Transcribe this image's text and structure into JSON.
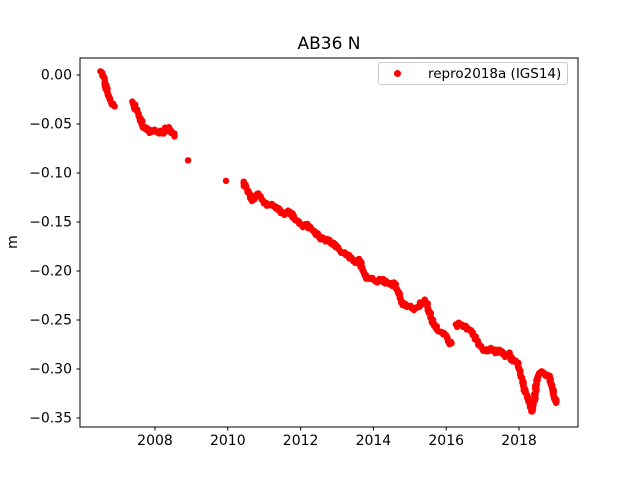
{
  "figure": {
    "background": "#ffffff",
    "text_color": "#000000",
    "spine_color": "#000000"
  },
  "chart_data": {
    "type": "scatter",
    "title": "AB36 N",
    "xlabel": "",
    "ylabel": "m",
    "xlim": [
      2005.94,
      2019.62
    ],
    "ylim": [
      -0.3592,
      0.01735
    ],
    "grid": false,
    "x_ticks": [
      2008,
      2010,
      2012,
      2014,
      2016,
      2018
    ],
    "x_tick_labels": [
      "2008",
      "2010",
      "2012",
      "2014",
      "2016",
      "2018"
    ],
    "y_ticks": [
      0.0,
      -0.05,
      -0.1,
      -0.15,
      -0.2,
      -0.25,
      -0.3,
      -0.35
    ],
    "y_tick_labels": [
      "0.00",
      "−0.05",
      "−0.10",
      "−0.15",
      "−0.20",
      "−0.25",
      "−0.30",
      "−0.35"
    ],
    "legend": {
      "position": "upper-right",
      "entries": [
        {
          "label": "repro2018a (IGS14)",
          "marker": "dot",
          "color": "#ff0000"
        }
      ]
    },
    "series": [
      {
        "name": "repro2018a (IGS14)",
        "color": "#ff0000",
        "marker_size_px": 6.4,
        "units": "m",
        "segments": [
          [
            [
              2006.5,
              0.003
            ],
            [
              2006.54,
              0.001
            ],
            [
              2006.58,
              -0.003
            ],
            [
              2006.62,
              -0.008
            ],
            [
              2006.66,
              -0.013
            ],
            [
              2006.7,
              -0.018
            ],
            [
              2006.74,
              -0.022
            ],
            [
              2006.79,
              -0.026
            ],
            [
              2006.84,
              -0.029
            ],
            [
              2006.88,
              -0.031
            ]
          ],
          [
            [
              2007.4,
              -0.028
            ],
            [
              2007.45,
              -0.033
            ],
            [
              2007.53,
              -0.038
            ],
            [
              2007.59,
              -0.043
            ],
            [
              2007.64,
              -0.048
            ],
            [
              2007.67,
              -0.053
            ],
            [
              2007.78,
              -0.056
            ],
            [
              2007.92,
              -0.058
            ],
            [
              2008.0,
              -0.056
            ],
            [
              2008.08,
              -0.058
            ],
            [
              2008.19,
              -0.059
            ],
            [
              2008.27,
              -0.056
            ],
            [
              2008.36,
              -0.054
            ],
            [
              2008.41,
              -0.056
            ],
            [
              2008.49,
              -0.059
            ],
            [
              2008.55,
              -0.062
            ]
          ],
          [
            [
              2010.42,
              -0.11
            ],
            [
              2010.5,
              -0.115
            ],
            [
              2010.58,
              -0.12
            ],
            [
              2010.68,
              -0.127
            ],
            [
              2010.78,
              -0.124
            ],
            [
              2010.86,
              -0.122
            ],
            [
              2010.95,
              -0.128
            ],
            [
              2011.03,
              -0.131
            ],
            [
              2011.12,
              -0.132
            ],
            [
              2011.22,
              -0.131
            ],
            [
              2011.3,
              -0.134
            ],
            [
              2011.38,
              -0.137
            ],
            [
              2011.48,
              -0.14
            ],
            [
              2011.56,
              -0.141
            ],
            [
              2011.64,
              -0.139
            ],
            [
              2011.75,
              -0.142
            ],
            [
              2011.84,
              -0.146
            ],
            [
              2011.92,
              -0.149
            ],
            [
              2012.03,
              -0.152
            ],
            [
              2012.11,
              -0.154
            ],
            [
              2012.19,
              -0.153
            ],
            [
              2012.3,
              -0.157
            ],
            [
              2012.4,
              -0.161
            ],
            [
              2012.5,
              -0.165
            ],
            [
              2012.58,
              -0.167
            ],
            [
              2012.68,
              -0.168
            ],
            [
              2012.78,
              -0.169
            ],
            [
              2012.88,
              -0.172
            ],
            [
              2012.96,
              -0.174
            ],
            [
              2013.05,
              -0.177
            ],
            [
              2013.13,
              -0.18
            ],
            [
              2013.22,
              -0.182
            ],
            [
              2013.32,
              -0.184
            ],
            [
              2013.42,
              -0.189
            ],
            [
              2013.5,
              -0.192
            ],
            [
              2013.56,
              -0.188
            ],
            [
              2013.62,
              -0.19
            ],
            [
              2013.7,
              -0.198
            ],
            [
              2013.76,
              -0.203
            ],
            [
              2013.82,
              -0.206
            ],
            [
              2013.9,
              -0.206
            ],
            [
              2013.98,
              -0.209
            ],
            [
              2014.08,
              -0.211
            ],
            [
              2014.16,
              -0.21
            ],
            [
              2014.24,
              -0.209
            ],
            [
              2014.32,
              -0.213
            ],
            [
              2014.4,
              -0.211
            ],
            [
              2014.5,
              -0.214
            ],
            [
              2014.58,
              -0.213
            ],
            [
              2014.66,
              -0.219
            ],
            [
              2014.72,
              -0.225
            ],
            [
              2014.78,
              -0.231
            ],
            [
              2014.86,
              -0.235
            ],
            [
              2015.0,
              -0.237
            ],
            [
              2015.12,
              -0.239
            ],
            [
              2015.22,
              -0.237
            ],
            [
              2015.32,
              -0.233
            ],
            [
              2015.42,
              -0.231
            ],
            [
              2015.5,
              -0.236
            ],
            [
              2015.56,
              -0.245
            ],
            [
              2015.64,
              -0.254
            ],
            [
              2015.76,
              -0.26
            ],
            [
              2015.88,
              -0.262
            ],
            [
              2015.98,
              -0.266
            ],
            [
              2016.06,
              -0.271
            ],
            [
              2016.14,
              -0.275
            ]
          ],
          [
            [
              2016.27,
              -0.256
            ],
            [
              2016.36,
              -0.254
            ],
            [
              2016.46,
              -0.255
            ],
            [
              2016.56,
              -0.257
            ],
            [
              2016.64,
              -0.26
            ],
            [
              2016.72,
              -0.264
            ],
            [
              2016.82,
              -0.27
            ],
            [
              2016.9,
              -0.275
            ],
            [
              2016.98,
              -0.278
            ],
            [
              2017.08,
              -0.281
            ],
            [
              2017.18,
              -0.28
            ],
            [
              2017.28,
              -0.281
            ],
            [
              2017.38,
              -0.283
            ],
            [
              2017.46,
              -0.28
            ],
            [
              2017.54,
              -0.283
            ],
            [
              2017.6,
              -0.286
            ],
            [
              2017.68,
              -0.285
            ],
            [
              2017.74,
              -0.285
            ],
            [
              2017.82,
              -0.291
            ],
            [
              2017.9,
              -0.292
            ],
            [
              2017.96,
              -0.294
            ],
            [
              2018.02,
              -0.302
            ],
            [
              2018.08,
              -0.311
            ],
            [
              2018.14,
              -0.319
            ],
            [
              2018.2,
              -0.327
            ],
            [
              2018.28,
              -0.333
            ],
            [
              2018.36,
              -0.344
            ],
            [
              2018.42,
              -0.333
            ],
            [
              2018.46,
              -0.32
            ],
            [
              2018.5,
              -0.31
            ],
            [
              2018.56,
              -0.304
            ],
            [
              2018.62,
              -0.302
            ],
            [
              2018.68,
              -0.303
            ],
            [
              2018.74,
              -0.306
            ],
            [
              2018.82,
              -0.307
            ],
            [
              2018.88,
              -0.314
            ],
            [
              2018.93,
              -0.322
            ],
            [
              2018.98,
              -0.33
            ],
            [
              2019.02,
              -0.334
            ]
          ]
        ],
        "isolated_points": [
          [
            2008.91,
            -0.087
          ],
          [
            2009.95,
            -0.108
          ]
        ]
      }
    ]
  }
}
